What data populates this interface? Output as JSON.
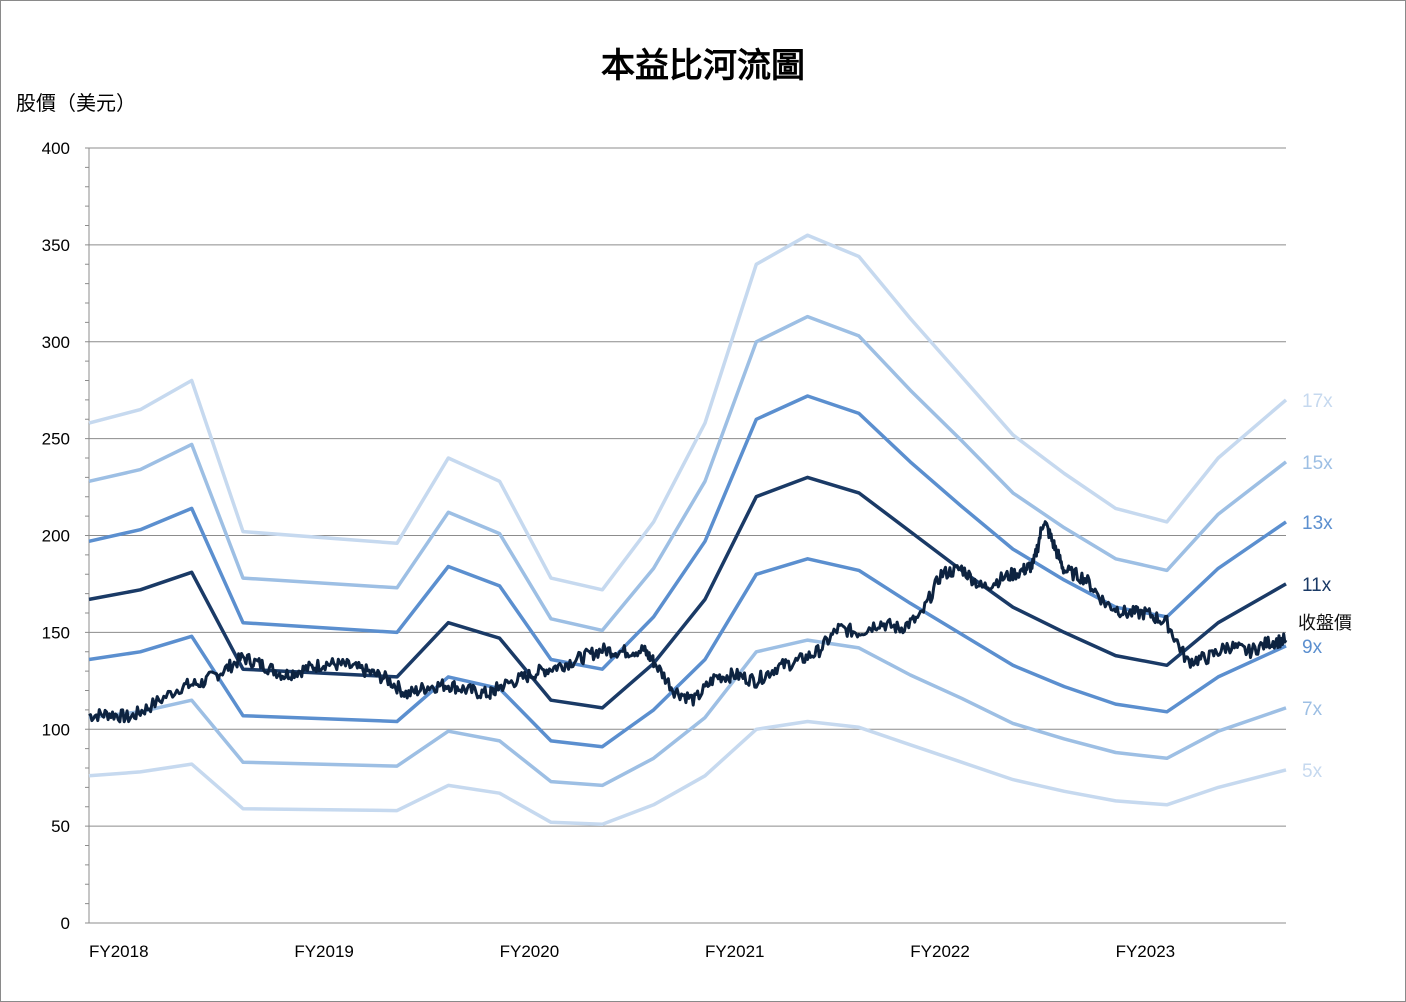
{
  "chart_data": {
    "type": "line",
    "title": "本益比河流圖",
    "ylabel": "股價（美元）",
    "ylim": [
      0,
      400
    ],
    "yticks": [
      "0",
      "50",
      "100",
      "150",
      "200",
      "250",
      "300",
      "350",
      "400"
    ],
    "x_range": [
      2018.0,
      2023.83
    ],
    "x_ticks": [
      {
        "x": 2018.0,
        "label": "FY2018"
      },
      {
        "x": 2019.0,
        "label": "FY2019"
      },
      {
        "x": 2020.0,
        "label": "FY2020"
      },
      {
        "x": 2021.0,
        "label": "FY2021"
      },
      {
        "x": 2022.0,
        "label": "FY2022"
      },
      {
        "x": 2023.0,
        "label": "FY2023"
      }
    ],
    "grid": true,
    "x": [
      2018.0,
      2018.25,
      2018.5,
      2018.75,
      2019.5,
      2019.75,
      2020.0,
      2020.25,
      2020.5,
      2020.75,
      2021.0,
      2021.25,
      2021.5,
      2021.75,
      2022.0,
      2022.25,
      2022.5,
      2022.75,
      2023.0,
      2023.25,
      2023.5,
      2023.83
    ],
    "series": [
      {
        "name": "17x",
        "color": "#c6d9ef",
        "values": [
          258,
          265,
          280,
          202,
          196,
          240,
          228,
          178,
          172,
          207,
          258,
          340,
          355,
          344,
          312,
          282,
          252,
          232,
          214,
          207,
          240,
          270
        ]
      },
      {
        "name": "15x",
        "color": "#9dbfe4",
        "values": [
          228,
          234,
          247,
          178,
          173,
          212,
          201,
          157,
          151,
          183,
          228,
          300,
          313,
          303,
          275,
          249,
          222,
          204,
          188,
          182,
          211,
          238
        ]
      },
      {
        "name": "13x",
        "color": "#5b8fcf",
        "values": [
          197,
          203,
          214,
          155,
          150,
          184,
          174,
          136,
          131,
          158,
          197,
          260,
          272,
          263,
          238,
          215,
          193,
          177,
          163,
          158,
          183,
          207
        ]
      },
      {
        "name": "11x",
        "color": "#1a3a66",
        "values": [
          167,
          172,
          181,
          131,
          127,
          155,
          147,
          115,
          111,
          134,
          167,
          220,
          230,
          222,
          202,
          182,
          163,
          150,
          138,
          133,
          155,
          175
        ]
      },
      {
        "name": "9x",
        "color": "#5b8fcf",
        "values": [
          136,
          140,
          148,
          107,
          104,
          127,
          121,
          94,
          91,
          110,
          136,
          180,
          188,
          182,
          165,
          149,
          133,
          122,
          113,
          109,
          127,
          143
        ]
      },
      {
        "name": "7x",
        "color": "#9dbfe4",
        "values": [
          106,
          109,
          115,
          83,
          81,
          99,
          94,
          73,
          71,
          85,
          106,
          140,
          146,
          142,
          128,
          116,
          103,
          95,
          88,
          85,
          99,
          111
        ]
      },
      {
        "name": "5x",
        "color": "#c6d9ef",
        "values": [
          76,
          78,
          82,
          59,
          58,
          71,
          67,
          52,
          51,
          61,
          76,
          100,
          104,
          101,
          92,
          83,
          74,
          68,
          63,
          61,
          70,
          79
        ]
      }
    ],
    "close": {
      "name": "收盤價",
      "color": "#0d2340",
      "x": [
        2018.0,
        2018.1,
        2018.2,
        2018.3,
        2018.45,
        2018.55,
        2018.65,
        2018.75,
        2018.85,
        2018.95,
        2019.05,
        2019.15,
        2019.25,
        2019.35,
        2019.45,
        2019.55,
        2019.65,
        2019.75,
        2019.85,
        2019.95,
        2020.0,
        2020.1,
        2020.2,
        2020.3,
        2020.4,
        2020.5,
        2020.6,
        2020.7,
        2020.75,
        2020.85,
        2020.95,
        2021.05,
        2021.15,
        2021.25,
        2021.35,
        2021.45,
        2021.55,
        2021.65,
        2021.75,
        2021.85,
        2021.95,
        2022.05,
        2022.15,
        2022.25,
        2022.35,
        2022.45,
        2022.55,
        2022.6,
        2022.65,
        2022.7,
        2022.75,
        2022.85,
        2022.95,
        2023.05,
        2023.15,
        2023.25,
        2023.35,
        2023.45,
        2023.55,
        2023.65,
        2023.75,
        2023.83
      ],
      "values": [
        107,
        108,
        106,
        112,
        122,
        124,
        130,
        137,
        133,
        128,
        131,
        134,
        133,
        130,
        126,
        118,
        122,
        123,
        120,
        118,
        122,
        126,
        130,
        133,
        137,
        141,
        140,
        141,
        135,
        120,
        115,
        127,
        128,
        125,
        132,
        135,
        140,
        152,
        150,
        155,
        152,
        158,
        180,
        183,
        173,
        178,
        182,
        185,
        208,
        195,
        182,
        178,
        165,
        160,
        160,
        155,
        135,
        137,
        143,
        140,
        145,
        146
      ]
    },
    "close_label": "收盤價"
  }
}
